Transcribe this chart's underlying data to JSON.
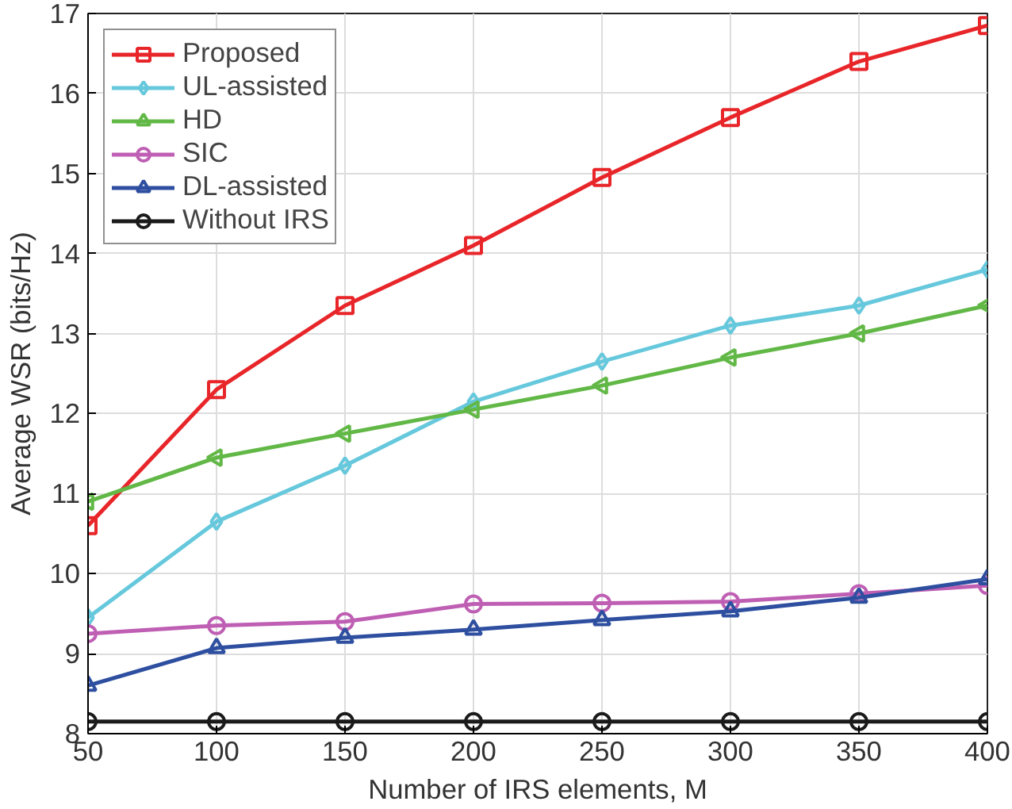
{
  "chart_data": {
    "type": "line",
    "xlabel": "Number of IRS elements, M",
    "ylabel": "Average WSR (bits/Hz)",
    "x": [
      50,
      100,
      150,
      200,
      250,
      300,
      350,
      400
    ],
    "xlim": [
      50,
      400
    ],
    "xticks": [
      50,
      100,
      150,
      200,
      250,
      300,
      350,
      400
    ],
    "ylim": [
      8,
      17
    ],
    "yticks": [
      8,
      9,
      10,
      11,
      12,
      13,
      14,
      15,
      16,
      17
    ],
    "grid": true,
    "legend": "top left",
    "series": [
      {
        "name": "Proposed",
        "color": "#e8262a",
        "marker": "square",
        "values": [
          10.6,
          12.3,
          13.35,
          14.1,
          14.95,
          15.7,
          16.4,
          16.85
        ]
      },
      {
        "name": "UL-assisted",
        "color": "#66c8dc",
        "marker": "diamond",
        "values": [
          9.45,
          10.65,
          11.35,
          12.15,
          12.65,
          13.1,
          13.35,
          13.8
        ]
      },
      {
        "name": "HD",
        "color": "#62b846",
        "marker": "triangle_left",
        "values": [
          10.9,
          11.45,
          11.75,
          12.05,
          12.35,
          12.7,
          13.0,
          13.35
        ]
      },
      {
        "name": "SIC",
        "color": "#bf5fb4",
        "marker": "circle",
        "values": [
          9.25,
          9.35,
          9.4,
          9.62,
          9.63,
          9.65,
          9.75,
          9.85
        ]
      },
      {
        "name": "DL-assisted",
        "color": "#2e4fa0",
        "marker": "triangle",
        "values": [
          8.6,
          9.07,
          9.2,
          9.3,
          9.42,
          9.53,
          9.7,
          9.93
        ]
      },
      {
        "name": "Without IRS",
        "color": "#1a1a1a",
        "marker": "circle",
        "values": [
          8.15,
          8.15,
          8.15,
          8.15,
          8.15,
          8.15,
          8.15,
          8.15
        ]
      }
    ]
  }
}
